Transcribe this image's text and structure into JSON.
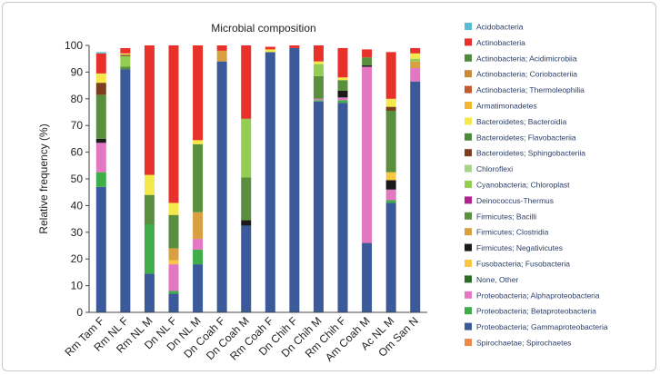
{
  "chart_data": {
    "type": "stacked-bar",
    "title": "Microbial composition",
    "xlabel": "",
    "ylabel": "Relative frequency (%)",
    "ylim": [
      0,
      100
    ],
    "yticks": [
      0,
      10,
      20,
      30,
      40,
      50,
      60,
      70,
      80,
      90,
      100
    ],
    "legend_position": "right",
    "categories": [
      "Rm Tam F",
      "Rm NL F",
      "Rm NL M",
      "Dn NL F",
      "Dn NL M",
      "Dn Coah F",
      "Dn Coah M",
      "Rm Coah F",
      "Dn Chih F",
      "Dn Chih M",
      "Rm Chih F",
      "Am Coah M",
      "Ac NL M",
      "Om San N"
    ],
    "series": [
      {
        "name": "Proteobacteria; Gammaproteobacteria",
        "color": "#3b5a9a",
        "values": [
          47,
          91,
          14.5,
          7,
          18,
          94,
          32.5,
          97.5,
          99,
          79,
          78.5,
          26,
          41,
          86.5
        ]
      },
      {
        "name": "Proteobacteria; Betaproteobacteria",
        "color": "#3fae49",
        "values": [
          5.5,
          0,
          18.5,
          1,
          5.5,
          0,
          0,
          0,
          0,
          0.5,
          1,
          0,
          1,
          0
        ]
      },
      {
        "name": "Proteobacteria; Alphaproteobacteria",
        "color": "#e377c2",
        "values": [
          11,
          0,
          0,
          10,
          4,
          0,
          0,
          0,
          0,
          0.5,
          1,
          66,
          4,
          5
        ]
      },
      {
        "name": "Firmicutes; Negativicutes",
        "color": "#1a1a1a",
        "values": [
          1.5,
          0,
          0,
          0,
          0,
          0,
          2,
          0,
          0,
          0,
          2.5,
          0.5,
          3.5,
          0
        ]
      },
      {
        "name": "Fusobacteria; Fusobacteria",
        "color": "#f7c744",
        "values": [
          0,
          0,
          0,
          1.5,
          0,
          0,
          0,
          0,
          0,
          0,
          0,
          0,
          3,
          0
        ]
      },
      {
        "name": "Firmicutes; Clostridia",
        "color": "#d8a040",
        "values": [
          0,
          0,
          0,
          4.5,
          10,
          4,
          0,
          0,
          0,
          0,
          0,
          0,
          0,
          2.5
        ]
      },
      {
        "name": "Firmicutes; Bacilli",
        "color": "#5a8f3e",
        "values": [
          16.5,
          1,
          11,
          12.5,
          25.5,
          0,
          16,
          0,
          0,
          8.5,
          4,
          3,
          23,
          0
        ]
      },
      {
        "name": "Cyanobacteria; Chloroplast",
        "color": "#93cd52",
        "values": [
          0,
          4,
          0,
          0,
          0,
          0,
          22,
          0,
          0,
          4.5,
          0,
          0,
          0,
          1
        ]
      },
      {
        "name": "Bacteroidetes; Sphingobacteriia",
        "color": "#7b3f1f",
        "values": [
          4.5,
          0.5,
          0,
          0,
          0,
          0,
          0,
          0,
          0,
          0,
          0,
          0,
          1.5,
          0
        ]
      },
      {
        "name": "Bacteroidetes; Bacteroidia",
        "color": "#f5e84a",
        "values": [
          3.5,
          0.5,
          7.5,
          4.5,
          1.5,
          0,
          0,
          1,
          0,
          1,
          1,
          0,
          3,
          2
        ]
      },
      {
        "name": "Actinobacteria",
        "color": "#e8312b",
        "values": [
          7.5,
          2,
          48.5,
          59,
          35.5,
          2,
          27.5,
          1,
          1,
          6,
          11,
          3,
          17.5,
          2
        ]
      },
      {
        "name": "Acidobacteria",
        "color": "#5bbcd6",
        "values": [
          0.5,
          0,
          0,
          0,
          0,
          0,
          0,
          0,
          0,
          0,
          0,
          0,
          0,
          0
        ]
      }
    ],
    "legend": [
      {
        "label": "Acidobacteria",
        "color": "#5bbcd6"
      },
      {
        "label": "Actinobacteria",
        "color": "#e8312b"
      },
      {
        "label": "Actinobacteria; Acidimicrobiia",
        "color": "#4f8a3c"
      },
      {
        "label": "Actinobacteria; Coriobacteriia",
        "color": "#c98a3a"
      },
      {
        "label": "Actinobacteria; Thermoleophilia",
        "color": "#c35a2d"
      },
      {
        "label": "Armatimonadetes",
        "color": "#f2b632"
      },
      {
        "label": "Bacteroidetes; Bacteroidia",
        "color": "#f5e84a"
      },
      {
        "label": "Bacteroidetes; Flavobacteriia",
        "color": "#4d8a3a"
      },
      {
        "label": "Bacteroidetes; Sphingobacteriia",
        "color": "#7b3f1f"
      },
      {
        "label": "Chloroflexi",
        "color": "#a9d38c"
      },
      {
        "label": "Cyanobacteria; Chloroplast",
        "color": "#93cd52"
      },
      {
        "label": "Deinococcus-Thermus",
        "color": "#b3218f"
      },
      {
        "label": "Firmicutes; Bacilli",
        "color": "#5a8f3e"
      },
      {
        "label": "Firmicutes; Clostridia",
        "color": "#d8a040"
      },
      {
        "label": "Firmicutes; Negativicutes",
        "color": "#1a1a1a"
      },
      {
        "label": "Fusobacteria; Fusobacteria",
        "color": "#f7c744"
      },
      {
        "label": "None, Other",
        "color": "#2f6b2a"
      },
      {
        "label": "Proteobacteria; Alphaproteobacteria",
        "color": "#e377c2"
      },
      {
        "label": "Proteobacteria; Betaproteobacteria",
        "color": "#3fae49"
      },
      {
        "label": "Proteobacteria; Gammaproteobacteria",
        "color": "#3b5a9a"
      },
      {
        "label": "Spirochaetae; Spirochaetes",
        "color": "#ef8a4e"
      }
    ]
  }
}
